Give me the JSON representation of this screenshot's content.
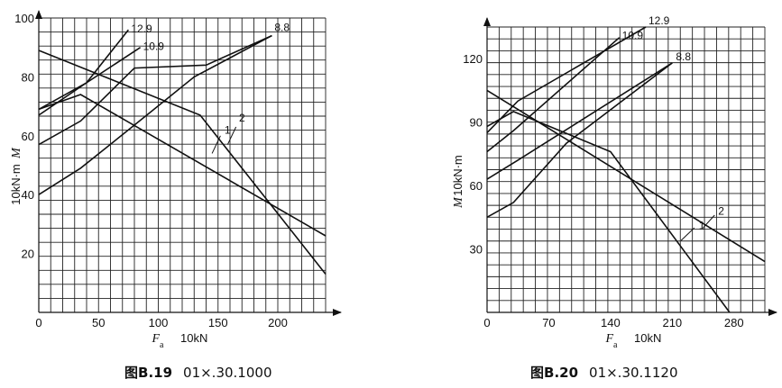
{
  "chart_data": [
    {
      "type": "line",
      "caption_prefix": "图",
      "caption_id": "B.19",
      "caption_code": "01×.30.1000",
      "ylabel": "M",
      "ylabel_unit": "10kN·m",
      "xlabel": "F",
      "xlabel_sub": "a",
      "xlabel_unit": "10kN",
      "xlim": [
        0,
        240
      ],
      "ylim": [
        0,
        100
      ],
      "xticks": [
        0,
        50,
        100,
        150,
        200
      ],
      "yticks": [
        20,
        40,
        60,
        80,
        100
      ],
      "grid": true,
      "series": [
        {
          "name": "12.9",
          "points": [
            [
              0,
              69
            ],
            [
              40,
              78
            ],
            [
              75,
              96
            ]
          ]
        },
        {
          "name": "10.9",
          "points": [
            [
              0,
              67
            ],
            [
              40,
              78
            ],
            [
              85,
              90
            ]
          ]
        },
        {
          "name": "8.8",
          "points": [
            [
              0,
              57
            ],
            [
              35,
              65
            ],
            [
              80,
              83
            ],
            [
              140,
              84
            ],
            [
              195,
              94
            ]
          ]
        },
        {
          "name": "1",
          "points": [
            [
              0,
              40
            ],
            [
              35,
              49
            ],
            [
              75,
              62
            ],
            [
              130,
              80
            ],
            [
              195,
              94
            ]
          ]
        },
        {
          "name": "2",
          "points": [
            [
              0,
              89
            ],
            [
              135,
              67
            ],
            [
              240,
              13
            ]
          ]
        },
        {
          "name": "",
          "points": [
            [
              0,
              69
            ],
            [
              35,
              74
            ],
            [
              240,
              26
            ]
          ]
        }
      ]
    },
    {
      "type": "line",
      "caption_prefix": "图",
      "caption_id": "B.20",
      "caption_code": "01×.30.1120",
      "ylabel": "M",
      "ylabel_unit": "10kN·m",
      "xlabel": "F",
      "xlabel_sub": "a",
      "xlabel_unit": "10kN",
      "xlim": [
        0,
        315
      ],
      "ylim": [
        0,
        135
      ],
      "xticks": [
        0,
        70,
        140,
        210,
        280
      ],
      "yticks": [
        30,
        60,
        90,
        120
      ],
      "grid": true,
      "series": [
        {
          "name": "12.9",
          "points": [
            [
              0,
              85
            ],
            [
              35,
              100
            ],
            [
              180,
              135
            ]
          ]
        },
        {
          "name": "10.9",
          "points": [
            [
              0,
              76
            ],
            [
              30,
              86
            ],
            [
              150,
              130
            ]
          ]
        },
        {
          "name": "8.8",
          "points": [
            [
              0,
              63
            ],
            [
              35,
              72
            ],
            [
              210,
              118
            ]
          ]
        },
        {
          "name": "1",
          "points": [
            [
              0,
              45
            ],
            [
              30,
              52
            ],
            [
              90,
              80
            ],
            [
              210,
              118
            ]
          ]
        },
        {
          "name": "2",
          "points": [
            [
              0,
              105
            ],
            [
              315,
              24
            ]
          ]
        },
        {
          "name": "",
          "points": [
            [
              0,
              88
            ],
            [
              30,
              95
            ],
            [
              140,
              76
            ],
            [
              275,
              0
            ]
          ]
        }
      ]
    }
  ]
}
